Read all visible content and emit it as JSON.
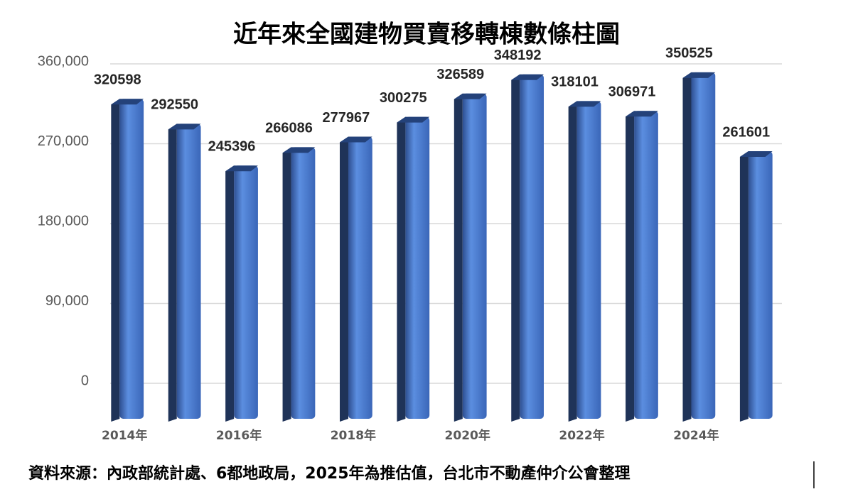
{
  "chart_data": {
    "type": "bar",
    "title": "近年來全國建物買賣移轉棟數條柱圖",
    "categories": [
      "2014年",
      null,
      "2016年",
      null,
      "2018年",
      null,
      "2020年",
      null,
      "2022年",
      null,
      "2024年",
      null
    ],
    "values": [
      320598,
      292550,
      245396,
      266086,
      277967,
      300275,
      326589,
      348192,
      318101,
      306971,
      350525,
      261601
    ],
    "color": "#4472c4",
    "ylim": [
      0,
      360000
    ],
    "yticks": [
      0,
      {
        "value": 90000,
        "label": "90,000"
      },
      {
        "value": 180000,
        "label": "180,000"
      },
      {
        "value": 270000,
        "label": "270,000"
      },
      {
        "value": 360000,
        "label": "360,000"
      }
    ],
    "grid": true,
    "source": "資料來源：內政部統計處、6都地政局，2025年為推估值，台北市不動產仲介公會整理"
  }
}
